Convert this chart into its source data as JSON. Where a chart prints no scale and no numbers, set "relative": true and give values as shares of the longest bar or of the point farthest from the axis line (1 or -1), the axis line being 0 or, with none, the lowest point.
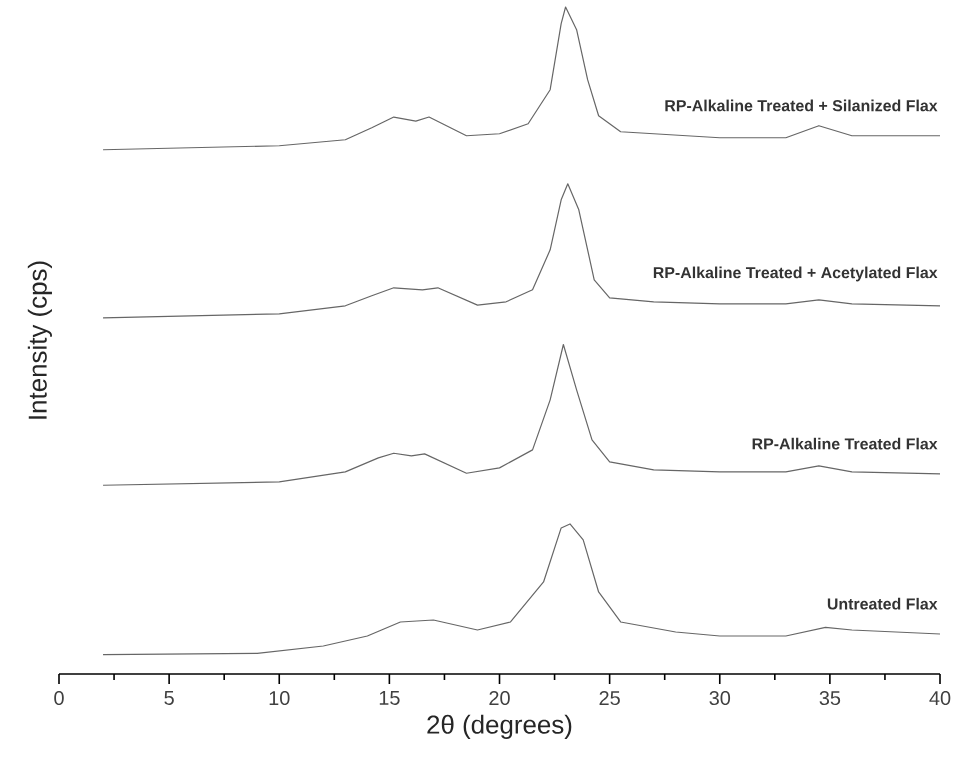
{
  "chart_data": {
    "type": "line",
    "relative": true,
    "xlabel": "2θ (degrees)",
    "ylabel": "Intensity (cps)",
    "xlim": [
      0,
      40
    ],
    "xticks": [
      0,
      5,
      10,
      15,
      20,
      25,
      30,
      35,
      40
    ],
    "marker": "none",
    "line_style": "solid",
    "series": [
      {
        "name": "RP-Alkaline Treated + Silanized Flax",
        "color": "#666666",
        "x": [
          2,
          10,
          13,
          14.2,
          15.2,
          16.2,
          16.8,
          18.5,
          20,
          21.3,
          22.3,
          22.8,
          23,
          23.5,
          24,
          24.5,
          25.5,
          30,
          33,
          34.5,
          36,
          40
        ],
        "values": [
          0.786,
          0.792,
          0.801,
          0.819,
          0.835,
          0.829,
          0.835,
          0.807,
          0.81,
          0.825,
          0.876,
          0.975,
          1.0,
          0.966,
          0.891,
          0.837,
          0.813,
          0.804,
          0.804,
          0.822,
          0.807,
          0.807
        ]
      },
      {
        "name": "RP-Alkaline Treated + Acetylated Flax",
        "color": "#666666",
        "x": [
          2,
          10,
          13,
          14.2,
          15.2,
          16.5,
          17.2,
          19,
          20.3,
          21.5,
          22.3,
          22.8,
          23.1,
          23.6,
          24.3,
          25,
          27,
          30,
          33,
          34.5,
          36,
          40
        ],
        "values": [
          0.534,
          0.54,
          0.552,
          0.567,
          0.579,
          0.576,
          0.579,
          0.553,
          0.558,
          0.576,
          0.636,
          0.711,
          0.735,
          0.696,
          0.591,
          0.564,
          0.558,
          0.555,
          0.555,
          0.561,
          0.555,
          0.552
        ]
      },
      {
        "name": "RP-Alkaline Treated Flax",
        "color": "#666666",
        "x": [
          2,
          10,
          13,
          14.5,
          15.2,
          16,
          16.6,
          18.5,
          20,
          21.5,
          22.3,
          22.9,
          23.5,
          24.2,
          25,
          27,
          30,
          33,
          34.5,
          36,
          40
        ],
        "values": [
          0.283,
          0.288,
          0.303,
          0.324,
          0.331,
          0.327,
          0.33,
          0.301,
          0.309,
          0.336,
          0.411,
          0.494,
          0.426,
          0.351,
          0.318,
          0.306,
          0.303,
          0.303,
          0.312,
          0.303,
          0.3
        ]
      },
      {
        "name": "Untreated Flax",
        "color": "#666666",
        "x": [
          2,
          9,
          12,
          14,
          15.5,
          17,
          19,
          20.5,
          22,
          22.8,
          23.2,
          23.8,
          24.5,
          25.5,
          28,
          30,
          33,
          34.8,
          36,
          40
        ],
        "values": [
          0.029,
          0.031,
          0.042,
          0.057,
          0.078,
          0.081,
          0.066,
          0.078,
          0.138,
          0.219,
          0.225,
          0.201,
          0.123,
          0.078,
          0.063,
          0.057,
          0.057,
          0.07,
          0.066,
          0.06
        ]
      }
    ]
  }
}
